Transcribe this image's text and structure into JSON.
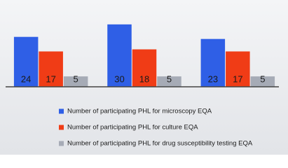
{
  "chart_data": {
    "type": "bar",
    "categories": [
      null,
      null,
      null
    ],
    "series": [
      {
        "name": "Number of participating PHL for microscopy EQA",
        "color": "#2f5fe6",
        "values": [
          24,
          30,
          23
        ]
      },
      {
        "name": "Number of participating PHL for culture EQA",
        "color": "#f03c16",
        "values": [
          17,
          18,
          17
        ]
      },
      {
        "name": "Number of participating PHL for drug susceptibility testing EQA",
        "color": "#a6abb6",
        "values": [
          5,
          5,
          5
        ]
      }
    ],
    "ylim": [
      0,
      35
    ]
  }
}
